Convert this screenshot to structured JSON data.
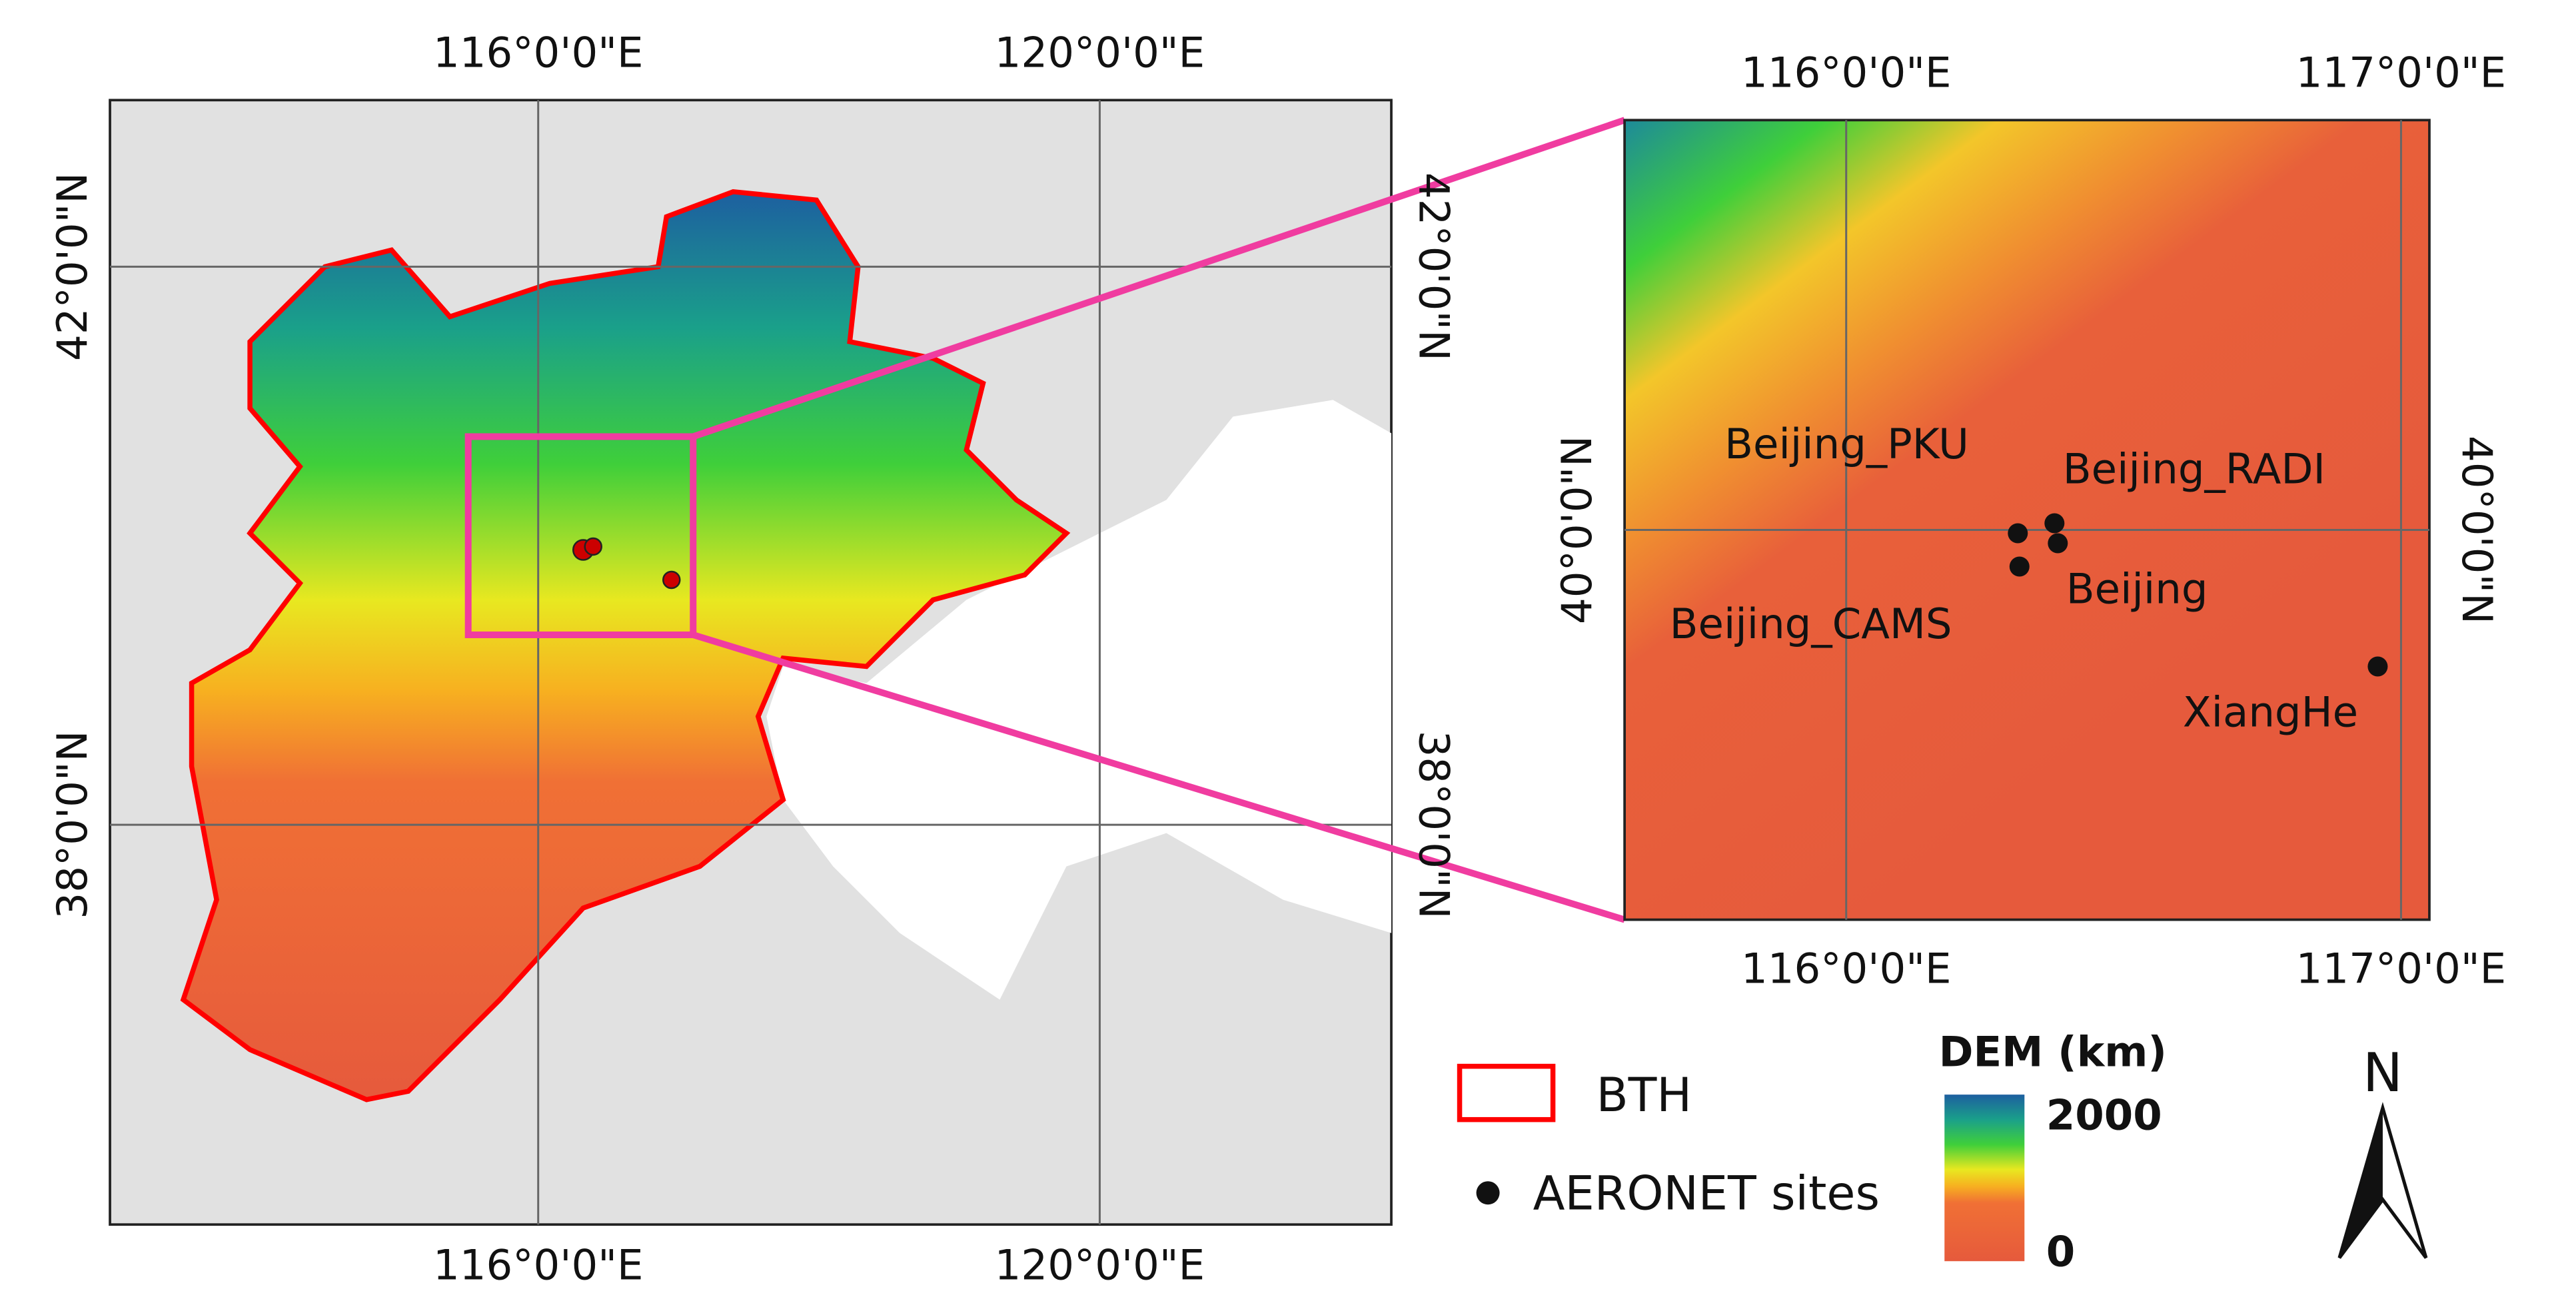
{
  "left_map": {
    "top_labels": [
      "116°0'0\"E",
      "120°0'0\"E"
    ],
    "bottom_labels": [
      "116°0'0\"E",
      "120°0'0\"E"
    ],
    "left_labels": [
      "42°0'0\"N",
      "38°0'0\"N"
    ],
    "right_labels": [
      "42°0'0\"N",
      "38°0'0\"N"
    ]
  },
  "inset_map": {
    "top_labels": [
      "116°0'0\"E",
      "117°0'0\"E"
    ],
    "bottom_labels": [
      "116°0'0\"E",
      "117°0'0\"E"
    ],
    "left_labels": [
      "40°0'0\"N"
    ],
    "right_labels": [
      "40°0'0\"N"
    ],
    "sites": [
      {
        "label": "Beijing_PKU"
      },
      {
        "label": "Beijing_RADI"
      },
      {
        "label": "Beijing"
      },
      {
        "label": "Beijing_CAMS"
      },
      {
        "label": "XiangHe"
      }
    ]
  },
  "legend": {
    "items": [
      "BTH",
      "AERONET sites"
    ],
    "dem_title": "DEM (km)",
    "dem_max": "2000",
    "dem_min": "0"
  },
  "north_arrow": "N"
}
